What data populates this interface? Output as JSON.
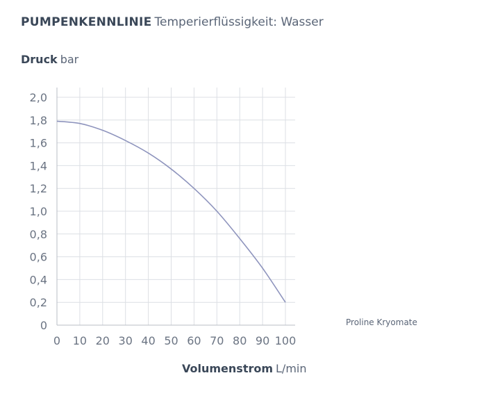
{
  "header": {
    "title_bold": "PUMPENKENNLINIE",
    "title_rest": "Temperierflüssigkeit: Wasser"
  },
  "axes": {
    "y_bold": "Druck",
    "y_unit": "bar",
    "x_bold": "Volumenstrom",
    "x_unit": "L/min"
  },
  "chart_data": {
    "type": "line",
    "title": "PUMPENKENNLINIE Temperierflüssigkeit: Wasser",
    "xlabel": "Volumenstrom L/min",
    "ylabel": "Druck bar",
    "xlim": [
      0,
      100
    ],
    "ylim": [
      0,
      2.0
    ],
    "x_ticks": [
      0,
      10,
      20,
      30,
      40,
      50,
      60,
      70,
      80,
      90,
      100
    ],
    "x_tick_labels": [
      "0",
      "10",
      "20",
      "30",
      "40",
      "50",
      "60",
      "70",
      "80",
      "90",
      "100"
    ],
    "y_ticks": [
      0,
      0.2,
      0.4,
      0.6,
      0.8,
      1.0,
      1.2,
      1.4,
      1.6,
      1.8,
      2.0
    ],
    "y_tick_labels": [
      "0",
      "0,2",
      "0,4",
      "0,6",
      "0,8",
      "1,0",
      "1,2",
      "1,4",
      "1,6",
      "1,8",
      "2,0"
    ],
    "grid": true,
    "legend_position": "right",
    "series": [
      {
        "name": "Proline Kryomate",
        "color": "#8e94bd",
        "x": [
          0,
          10,
          20,
          30,
          40,
          50,
          60,
          70,
          80,
          90,
          100
        ],
        "y": [
          1.79,
          1.77,
          1.71,
          1.62,
          1.51,
          1.37,
          1.2,
          1.0,
          0.76,
          0.5,
          0.2
        ]
      }
    ]
  }
}
